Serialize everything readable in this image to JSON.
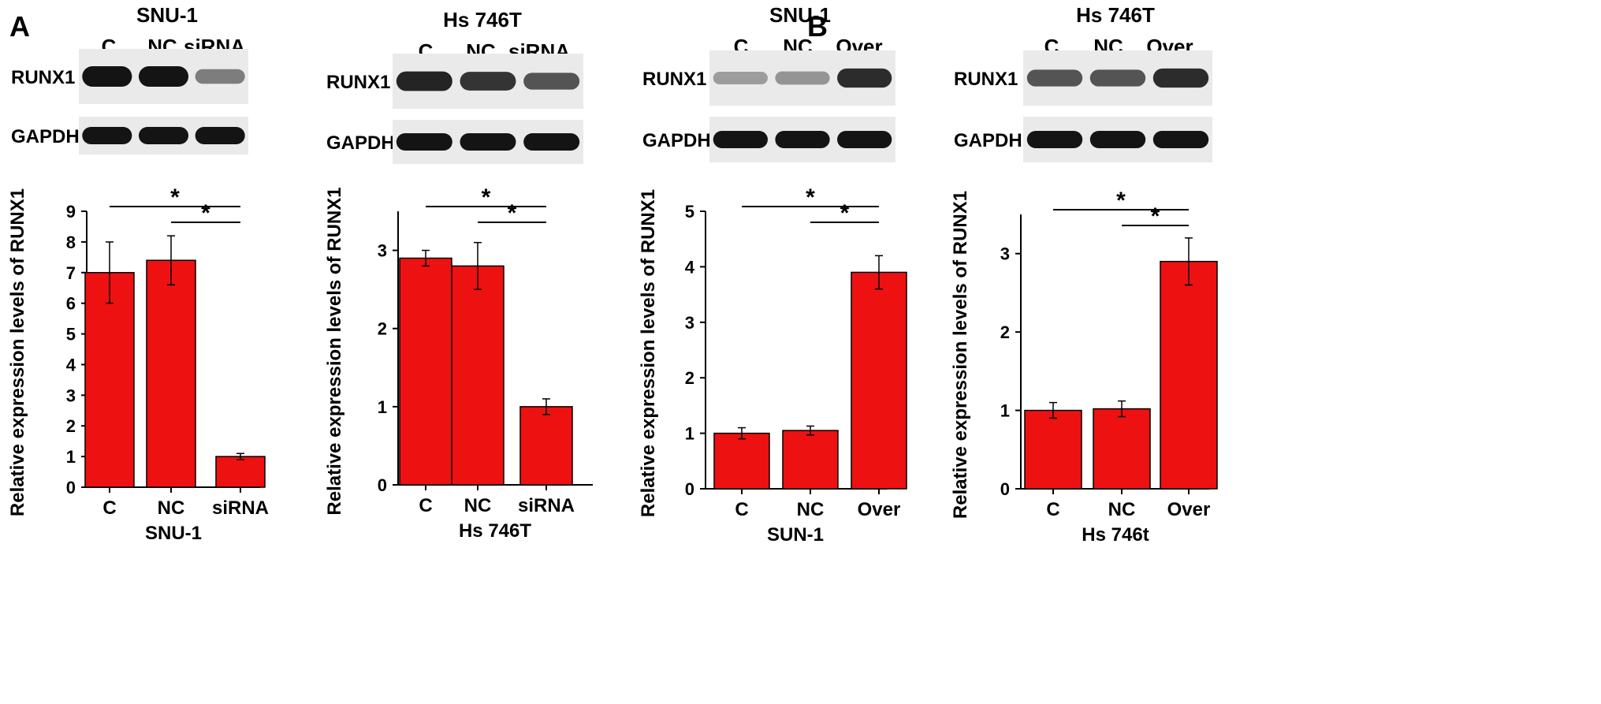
{
  "panel_labels": [
    "A",
    "B"
  ],
  "style": {
    "bar_color": "#ee1111",
    "bar_stroke": "#000000",
    "band_color": "#141414",
    "blot_background": "#eaeaea"
  },
  "blots": [
    {
      "title": "SNU-1",
      "lanes": [
        "C",
        "NC",
        "siRNA"
      ],
      "rows": [
        {
          "label": "RUNX1",
          "intensity": [
            1.0,
            1.0,
            0.35
          ]
        },
        {
          "label": "GAPDH",
          "intensity": [
            1.0,
            1.0,
            1.0
          ]
        }
      ]
    },
    {
      "title": "Hs 746T",
      "lanes": [
        "C",
        "NC",
        "siRNA"
      ],
      "rows": [
        {
          "label": "RUNX1",
          "intensity": [
            0.9,
            0.8,
            0.6
          ]
        },
        {
          "label": "GAPDH",
          "intensity": [
            1.0,
            1.0,
            1.0
          ]
        }
      ]
    },
    {
      "title": "SNU-1",
      "lanes": [
        "C",
        "NC",
        "Over"
      ],
      "rows": [
        {
          "label": "RUNX1",
          "intensity": [
            0.15,
            0.2,
            0.85
          ]
        },
        {
          "label": "GAPDH",
          "intensity": [
            1.0,
            1.0,
            1.0
          ]
        }
      ]
    },
    {
      "title": "Hs 746T",
      "lanes": [
        "C",
        "NC",
        "Over"
      ],
      "rows": [
        {
          "label": "RUNX1",
          "intensity": [
            0.6,
            0.6,
            0.85
          ]
        },
        {
          "label": "GAPDH",
          "intensity": [
            1.0,
            1.0,
            1.0
          ]
        }
      ]
    }
  ],
  "chart_data": [
    {
      "type": "bar",
      "categories": [
        "C",
        "NC",
        "siRNA"
      ],
      "values": [
        7.0,
        7.4,
        1.0
      ],
      "errors": [
        1.0,
        0.8,
        0.1
      ],
      "xlabel": "SNU-1",
      "ylabel": "Relative expression levels of RUNX1",
      "ylim": [
        0,
        9
      ],
      "yticks": [
        0,
        1,
        2,
        3,
        4,
        5,
        6,
        7,
        8,
        9
      ],
      "significance": [
        {
          "from": "C",
          "to": "siRNA",
          "label": "*"
        },
        {
          "from": "NC",
          "to": "siRNA",
          "label": "*"
        }
      ]
    },
    {
      "type": "bar",
      "categories": [
        "C",
        "NC",
        "siRNA"
      ],
      "values": [
        2.9,
        2.8,
        1.0
      ],
      "errors": [
        0.1,
        0.3,
        0.1
      ],
      "xlabel": "Hs 746T",
      "ylabel": "Relative expression levels of RUNX1",
      "ylim": [
        0,
        3.5
      ],
      "yticks": [
        0,
        1,
        2,
        3
      ],
      "significance": [
        {
          "from": "C",
          "to": "siRNA",
          "label": "*"
        },
        {
          "from": "NC",
          "to": "siRNA",
          "label": "*"
        }
      ]
    },
    {
      "type": "bar",
      "categories": [
        "C",
        "NC",
        "Over"
      ],
      "values": [
        1.0,
        1.05,
        3.9
      ],
      "errors": [
        0.1,
        0.08,
        0.3
      ],
      "xlabel": "SUN-1",
      "ylabel": "Relative expression levels of RUNX1",
      "ylim": [
        0,
        5
      ],
      "yticks": [
        0,
        1,
        2,
        3,
        4,
        5
      ],
      "significance": [
        {
          "from": "C",
          "to": "Over",
          "label": "*"
        },
        {
          "from": "NC",
          "to": "Over",
          "label": "*"
        }
      ]
    },
    {
      "type": "bar",
      "categories": [
        "C",
        "NC",
        "Over"
      ],
      "values": [
        1.0,
        1.02,
        2.9
      ],
      "errors": [
        0.1,
        0.1,
        0.3
      ],
      "xlabel": "Hs 746t",
      "ylabel": "Relative expression levels of RUNX1",
      "ylim": [
        0,
        3.5
      ],
      "yticks": [
        0,
        1,
        2,
        3
      ],
      "significance": [
        {
          "from": "C",
          "to": "Over",
          "label": "*"
        },
        {
          "from": "NC",
          "to": "Over",
          "label": "*"
        }
      ]
    }
  ]
}
